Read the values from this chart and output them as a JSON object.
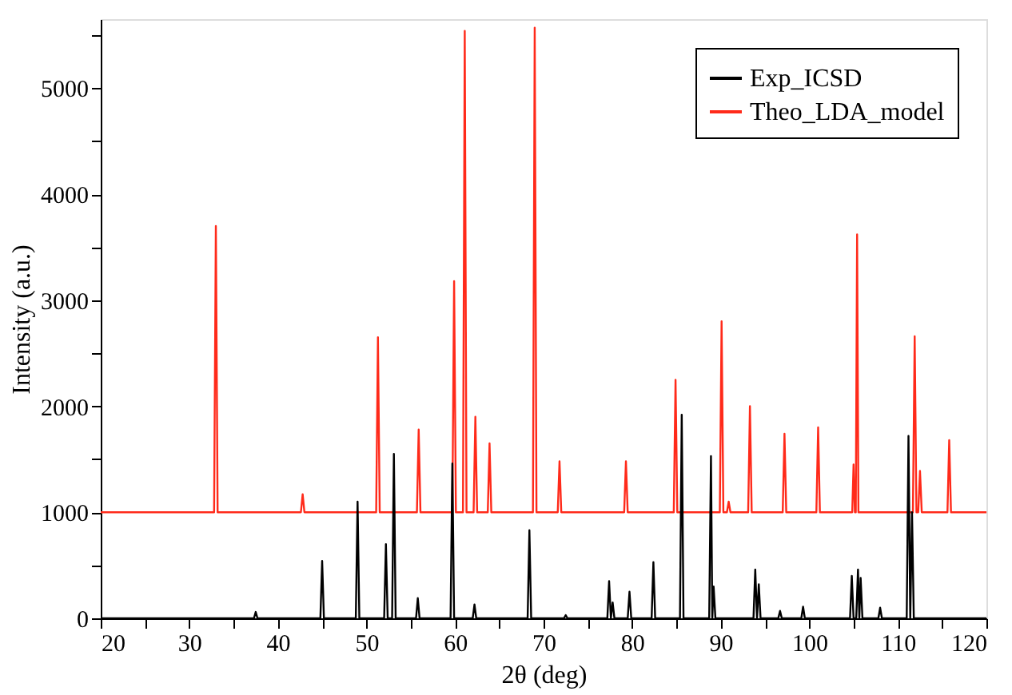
{
  "chart_data": {
    "type": "line",
    "xlabel": "2θ (deg)",
    "ylabel": "Intensity (a.u.)",
    "xlim": [
      20,
      120
    ],
    "ylim": [
      0,
      5650
    ],
    "xticks": [
      20,
      {
        "value": 25,
        "label": null
      },
      30,
      {
        "value": 35,
        "label": null
      },
      40,
      {
        "value": 45,
        "label": null
      },
      50,
      {
        "value": 55,
        "label": null
      },
      60,
      {
        "value": 65,
        "label": null
      },
      70,
      {
        "value": 75,
        "label": null
      },
      80,
      {
        "value": 85,
        "label": null
      },
      90,
      {
        "value": 95,
        "label": null
      },
      100,
      {
        "value": 105,
        "label": null
      },
      110,
      {
        "value": 115,
        "label": null
      },
      120
    ],
    "yticks": [
      0,
      {
        "value": 500,
        "label": null
      },
      1000,
      {
        "value": 1500,
        "label": null
      },
      2000,
      {
        "value": 2500,
        "label": null
      },
      3000,
      {
        "value": 3500,
        "label": null
      },
      4000,
      {
        "value": 4500,
        "label": null
      },
      5000,
      {
        "value": 5500,
        "label": null
      }
    ],
    "grid": false,
    "legend": "top right",
    "marker": "none",
    "line_style": "solid",
    "series": [
      {
        "name": "Exp_ICSD",
        "color": "#000000",
        "x": [
          20,
          37.3,
          37.5,
          37.7,
          44.8,
          45,
          45.2,
          48.8,
          49,
          49.2,
          52.0,
          52.2,
          52.4,
          52.9,
          53.1,
          53.3,
          55.6,
          55.8,
          56.0,
          59.5,
          59.7,
          59.9,
          62.0,
          62.2,
          62.4,
          68.2,
          68.4,
          68.6,
          72.3,
          72.5,
          72.7,
          77.2,
          77.4,
          77.6,
          77.8,
          78.0,
          79.5,
          79.7,
          79.9,
          82.2,
          82.4,
          82.6,
          85.4,
          85.6,
          85.8,
          88.7,
          88.9,
          89.05,
          89.2,
          89.4,
          93.7,
          93.9,
          94.1,
          94.3,
          94.5,
          96.5,
          96.7,
          96.9,
          99.1,
          99.3,
          99.5,
          104.6,
          104.8,
          105.0,
          105.3,
          105.5,
          105.65,
          105.8,
          106.0,
          107.8,
          108,
          108.2,
          111.0,
          111.2,
          111.4,
          111.6,
          111.8,
          120
        ],
        "values": [
          0,
          0,
          60,
          0,
          0,
          540,
          0,
          0,
          1100,
          0,
          0,
          700,
          0,
          0,
          1550,
          0,
          0,
          190,
          0,
          0,
          1460,
          0,
          0,
          130,
          0,
          0,
          830,
          0,
          0,
          30,
          0,
          0,
          350,
          0,
          150,
          0,
          0,
          250,
          0,
          0,
          530,
          0,
          0,
          1920,
          0,
          0,
          1530,
          0,
          300,
          0,
          0,
          460,
          0,
          320,
          0,
          0,
          70,
          0,
          0,
          110,
          0,
          0,
          400,
          0,
          0,
          460,
          0,
          380,
          0,
          0,
          100,
          0,
          0,
          1720,
          0,
          1000,
          0,
          0
        ]
      },
      {
        "name": "Theo_LDA_model",
        "color": "#ff2a1a",
        "x": [
          20,
          32.8,
          33,
          33.2,
          42.6,
          42.8,
          43.0,
          51.1,
          51.3,
          51.5,
          55.7,
          55.9,
          56.1,
          59.7,
          59.9,
          60.1,
          60.9,
          61.1,
          61.3,
          62.1,
          62.3,
          62.5,
          63.7,
          63.9,
          64.1,
          68.8,
          69,
          69.2,
          71.6,
          71.8,
          72.0,
          79.1,
          79.3,
          79.5,
          84.7,
          84.9,
          85.1,
          89.9,
          90.1,
          90.3,
          90.7,
          90.9,
          91.1,
          93.1,
          93.3,
          93.5,
          97.0,
          97.2,
          97.4,
          100.8,
          101,
          101.2,
          104.85,
          105,
          105.15,
          105.25,
          105.4,
          105.55,
          111.7,
          111.9,
          112.1,
          112.3,
          112.5,
          112.7,
          115.6,
          115.8,
          116.0,
          120
        ],
        "values": [
          1000,
          1000,
          3700,
          1000,
          1000,
          1170,
          1000,
          1000,
          2650,
          1000,
          1000,
          1780,
          1000,
          1000,
          3180,
          1000,
          1000,
          5540,
          1000,
          1000,
          1900,
          1000,
          1000,
          1650,
          1000,
          1000,
          5570,
          1000,
          1000,
          1480,
          1000,
          1000,
          1480,
          1000,
          1000,
          2250,
          1000,
          1000,
          2800,
          1000,
          1000,
          1100,
          1000,
          1000,
          2000,
          1000,
          1000,
          1740,
          1000,
          1000,
          1800,
          1000,
          1000,
          1450,
          1000,
          1000,
          3620,
          1000,
          1000,
          2660,
          1000,
          1000,
          1390,
          1000,
          1000,
          1680,
          1000,
          1000
        ]
      }
    ]
  }
}
